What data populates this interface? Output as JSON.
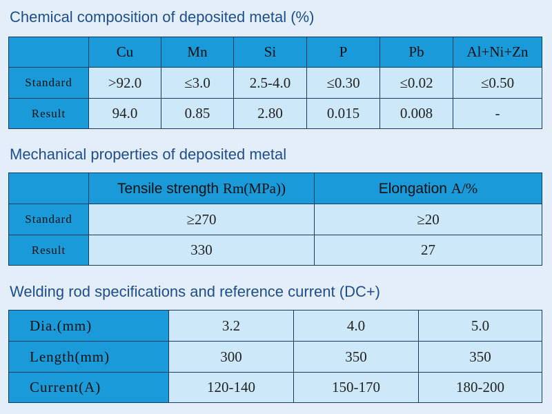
{
  "chemical": {
    "title": "Chemical composition of deposited metal (%)",
    "columns": [
      "",
      "Cu",
      "Mn",
      "Si",
      "P",
      "Pb",
      "Al+Ni+Zn"
    ],
    "rows": [
      {
        "label": "Standard",
        "values": [
          ">92.0",
          "≤3.0",
          "2.5-4.0",
          "≤0.30",
          "≤0.02",
          "≤0.50"
        ]
      },
      {
        "label": "Result",
        "values": [
          "94.0",
          "0.85",
          "2.80",
          "0.015",
          "0.008",
          "-"
        ]
      }
    ]
  },
  "mechanical": {
    "title": "Mechanical properties of deposited metal",
    "columns": [
      {
        "name": "Tensile strength ",
        "unit": "Rm(MPa))"
      },
      {
        "name": "Elongation ",
        "unit": "A/%"
      }
    ],
    "rows": [
      {
        "label": "Standard",
        "values": [
          "≥270",
          "≥20"
        ]
      },
      {
        "label": "Result",
        "values": [
          "330",
          "27"
        ]
      }
    ]
  },
  "welding": {
    "title": "Welding rod specifications and reference current (DC+)",
    "rows": [
      {
        "label": "Dia.(mm)",
        "values": [
          "3.2",
          "4.0",
          "5.0"
        ]
      },
      {
        "label": "Length(mm)",
        "values": [
          "300",
          "350",
          "350"
        ]
      },
      {
        "label": "Current(A)",
        "values": [
          "120-140",
          "150-170",
          "180-200"
        ]
      }
    ]
  }
}
